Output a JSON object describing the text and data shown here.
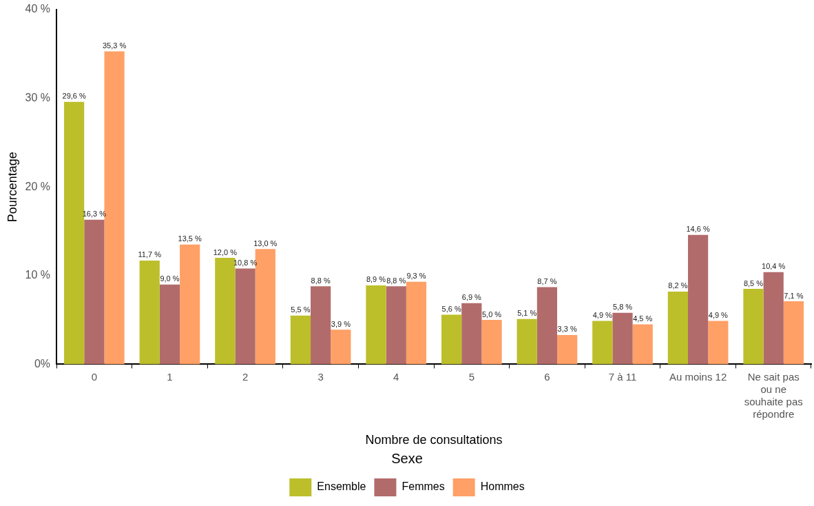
{
  "chart_data": {
    "type": "bar",
    "xlabel": "Nombre de consultations",
    "ylabel": "Pourcentage",
    "legend_title": "Sexe",
    "categories": [
      "0",
      "1",
      "2",
      "3",
      "4",
      "5",
      "6",
      "7 à 11",
      "Au moins 12",
      "Ne sait pas ou ne souhaite pas répondre"
    ],
    "series": [
      {
        "name": "Ensemble",
        "color": "#bcbf2a",
        "values": [
          29.6,
          11.7,
          12.0,
          5.5,
          8.9,
          5.6,
          5.1,
          4.9,
          8.2,
          8.5
        ],
        "value_labels": [
          "29,6 %",
          "11,7 %",
          "12,0 %",
          "5,5 %",
          "8,9 %",
          "5,6 %",
          "5,1 %",
          "4,9 %",
          "8,2 %",
          "8,5 %"
        ]
      },
      {
        "name": "Femmes",
        "color": "#b26b6b",
        "values": [
          16.3,
          9.0,
          10.8,
          8.8,
          8.8,
          6.9,
          8.7,
          5.8,
          14.6,
          10.4
        ],
        "value_labels": [
          "16,3 %",
          "9,0 %",
          "10,8 %",
          "8,8 %",
          "8,8 %",
          "6,9 %",
          "8,7 %",
          "5,8 %",
          "14,6 %",
          "10,4 %"
        ]
      },
      {
        "name": "Hommes",
        "color": "#ffa066",
        "values": [
          35.3,
          13.5,
          13.0,
          3.9,
          9.3,
          5.0,
          3.3,
          4.5,
          4.9,
          7.1
        ],
        "value_labels": [
          "35,3 %",
          "13,5 %",
          "13,0 %",
          "3,9 %",
          "9,3 %",
          "5,0 %",
          "3,3 %",
          "4,5 %",
          "4,9 %",
          "7,1 %"
        ]
      }
    ],
    "ylim": [
      0,
      40
    ],
    "yticks": [
      {
        "value": 0,
        "label": "0%"
      },
      {
        "value": 10,
        "label": "10 %"
      },
      {
        "value": 20,
        "label": "20 %"
      },
      {
        "value": 30,
        "label": "30 %"
      },
      {
        "value": 40,
        "label": "40 %"
      }
    ],
    "grid": false,
    "legend": "bottom"
  }
}
